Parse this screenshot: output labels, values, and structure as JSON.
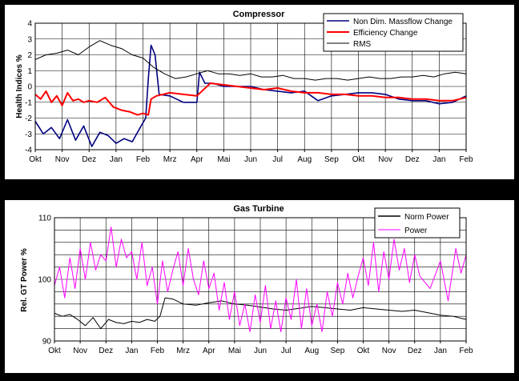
{
  "chart_data": [
    {
      "type": "line",
      "title": "Compressor",
      "ylabel": "Health Indices %",
      "xlabel": "",
      "ylim": [
        -4,
        4
      ],
      "yticks": [
        "4",
        "3",
        "2",
        "1",
        "0",
        "-1",
        "-2",
        "-3",
        "-4"
      ],
      "x_ticks": [
        "Okt",
        "Nov",
        "Dez",
        "Jan",
        "Feb",
        "Mrz",
        "Apr",
        "Mai",
        "Jun",
        "Jul",
        "Aug",
        "Sep",
        "Okt",
        "Nov",
        "Dez",
        "Jan",
        "Feb"
      ],
      "legend_position": "top-right",
      "grid": true,
      "series": [
        {
          "name": "Non Dim. Massflow Change",
          "color": "#000080",
          "x": [
            0.0,
            0.3,
            0.6,
            0.9,
            1.2,
            1.5,
            1.8,
            2.1,
            2.4,
            2.7,
            3.0,
            3.3,
            3.6,
            3.9,
            4.1,
            4.2,
            4.3,
            4.45,
            4.6,
            5.0,
            5.5,
            6.0,
            6.1,
            6.3,
            6.6,
            7.0,
            7.5,
            8.0,
            8.5,
            9.0,
            9.5,
            10.0,
            10.5,
            11.0,
            11.5,
            12.0,
            12.5,
            13.0,
            13.5,
            14.0,
            14.5,
            15.0,
            15.5,
            16.0
          ],
          "values": [
            -2.2,
            -3.0,
            -2.6,
            -3.3,
            -2.1,
            -3.4,
            -2.5,
            -3.8,
            -2.9,
            -3.1,
            -3.6,
            -3.3,
            -3.5,
            -2.6,
            -2.0,
            0.5,
            2.6,
            2.0,
            -0.5,
            -0.6,
            -1.0,
            -1.0,
            0.9,
            0.2,
            0.2,
            0.0,
            0.0,
            0.0,
            -0.2,
            -0.3,
            -0.4,
            -0.3,
            -0.9,
            -0.6,
            -0.5,
            -0.4,
            -0.4,
            -0.5,
            -0.8,
            -0.9,
            -0.9,
            -1.1,
            -1.0,
            -0.6
          ]
        },
        {
          "name": "Efficiency Change",
          "color": "#FF0000",
          "x": [
            0.0,
            0.2,
            0.4,
            0.6,
            0.8,
            1.0,
            1.2,
            1.4,
            1.6,
            1.8,
            2.0,
            2.3,
            2.6,
            2.9,
            3.2,
            3.5,
            3.8,
            4.0,
            4.2,
            4.3,
            4.5,
            5.0,
            5.5,
            6.0,
            6.5,
            7.0,
            7.5,
            8.0,
            8.5,
            9.0,
            9.5,
            10.0,
            10.5,
            11.0,
            11.5,
            12.0,
            12.5,
            13.0,
            13.5,
            14.0,
            14.5,
            15.0,
            15.5,
            16.0
          ],
          "values": [
            -0.5,
            -0.8,
            -0.3,
            -1.0,
            -0.6,
            -1.2,
            -0.4,
            -0.9,
            -0.8,
            -1.0,
            -0.9,
            -1.0,
            -0.7,
            -1.3,
            -1.5,
            -1.6,
            -1.8,
            -1.7,
            -1.8,
            -0.8,
            -0.6,
            -0.4,
            -0.5,
            -0.6,
            0.2,
            0.1,
            0.0,
            -0.1,
            -0.2,
            -0.1,
            -0.3,
            -0.4,
            -0.4,
            -0.5,
            -0.5,
            -0.6,
            -0.6,
            -0.7,
            -0.7,
            -0.8,
            -0.8,
            -0.9,
            -0.9,
            -0.7
          ]
        },
        {
          "name": "RMS",
          "color": "#000000",
          "x": [
            0.0,
            0.4,
            0.8,
            1.2,
            1.6,
            2.0,
            2.4,
            2.8,
            3.2,
            3.6,
            4.0,
            4.4,
            4.8,
            5.2,
            5.6,
            6.0,
            6.4,
            6.8,
            7.2,
            7.6,
            8.0,
            8.4,
            8.8,
            9.2,
            9.6,
            10.0,
            10.4,
            10.8,
            11.2,
            11.6,
            12.0,
            12.4,
            12.8,
            13.2,
            13.6,
            14.0,
            14.4,
            14.8,
            15.2,
            15.6,
            16.0
          ],
          "values": [
            1.7,
            2.0,
            2.1,
            2.3,
            2.0,
            2.5,
            2.9,
            2.6,
            2.4,
            2.0,
            1.8,
            1.2,
            0.8,
            0.5,
            0.6,
            0.8,
            1.0,
            0.8,
            0.8,
            0.7,
            0.8,
            0.6,
            0.6,
            0.7,
            0.5,
            0.5,
            0.4,
            0.5,
            0.5,
            0.4,
            0.5,
            0.6,
            0.5,
            0.5,
            0.6,
            0.6,
            0.7,
            0.6,
            0.8,
            0.9,
            0.8
          ]
        }
      ]
    },
    {
      "type": "line",
      "title": "Gas Turbine",
      "ylabel": "Rel. GT Power %",
      "xlabel": "",
      "ylim": [
        90,
        110
      ],
      "yticks": [
        "110",
        "100",
        "90"
      ],
      "x_ticks": [
        "Okt",
        "Nov",
        "Dez",
        "Jan",
        "Feb",
        "Mrz",
        "Apr",
        "Mai",
        "Jun",
        "Jul",
        "Aug",
        "Sep",
        "Okt",
        "Nov",
        "Dez",
        "Jan",
        "Feb"
      ],
      "legend_position": "top-right",
      "grid": true,
      "series": [
        {
          "name": "Norm Power",
          "color": "#000000",
          "x": [
            0.0,
            0.3,
            0.6,
            0.9,
            1.2,
            1.5,
            1.8,
            2.1,
            2.4,
            2.7,
            3.0,
            3.3,
            3.6,
            3.9,
            4.1,
            4.3,
            4.6,
            5.0,
            5.5,
            6.0,
            6.5,
            7.0,
            7.5,
            8.0,
            8.5,
            9.0,
            9.5,
            10.0,
            10.5,
            11.0,
            11.5,
            12.0,
            12.5,
            13.0,
            13.5,
            14.0,
            14.5,
            15.0,
            15.5,
            16.0
          ],
          "values": [
            94.5,
            94.0,
            94.3,
            93.5,
            92.5,
            93.8,
            92.0,
            93.5,
            93.0,
            92.8,
            93.2,
            93.0,
            93.5,
            93.2,
            94.0,
            97.0,
            96.8,
            96.0,
            95.8,
            96.2,
            96.5,
            96.0,
            95.8,
            95.5,
            95.2,
            95.0,
            95.3,
            95.6,
            95.4,
            95.2,
            95.0,
            95.4,
            95.2,
            95.0,
            94.8,
            95.0,
            94.6,
            94.2,
            94.0,
            93.5
          ]
        },
        {
          "name": "Power",
          "color": "#FF00FF",
          "x": [
            0.0,
            0.2,
            0.4,
            0.6,
            0.8,
            1.0,
            1.2,
            1.4,
            1.6,
            1.8,
            2.0,
            2.2,
            2.4,
            2.6,
            2.8,
            3.0,
            3.2,
            3.4,
            3.6,
            3.8,
            4.0,
            4.2,
            4.4,
            4.6,
            4.8,
            5.0,
            5.2,
            5.4,
            5.6,
            5.8,
            6.0,
            6.2,
            6.4,
            6.6,
            6.8,
            7.0,
            7.2,
            7.4,
            7.6,
            7.8,
            8.0,
            8.2,
            8.4,
            8.6,
            8.8,
            9.0,
            9.2,
            9.4,
            9.6,
            9.8,
            10.0,
            10.2,
            10.4,
            10.6,
            10.8,
            11.0,
            11.2,
            11.4,
            11.6,
            11.8,
            12.0,
            12.2,
            12.4,
            12.6,
            12.8,
            13.0,
            13.2,
            13.4,
            13.6,
            13.8,
            14.0,
            14.2,
            14.6,
            15.0,
            15.3,
            15.6,
            15.8,
            16.0
          ],
          "values": [
            99.0,
            102.0,
            97.0,
            103.5,
            98.5,
            105.0,
            100.0,
            106.0,
            101.5,
            104.0,
            103.0,
            108.5,
            102.0,
            106.5,
            103.5,
            104.5,
            100.0,
            106.0,
            99.0,
            102.0,
            96.0,
            103.0,
            98.0,
            101.5,
            104.5,
            99.0,
            105.0,
            100.0,
            97.5,
            103.0,
            98.5,
            101.0,
            95.0,
            99.5,
            93.5,
            98.0,
            92.5,
            96.0,
            91.5,
            97.5,
            93.0,
            99.0,
            92.0,
            96.5,
            91.5,
            97.0,
            93.5,
            100.0,
            92.0,
            98.5,
            92.5,
            96.0,
            91.5,
            98.0,
            94.0,
            99.5,
            96.0,
            101.0,
            97.0,
            100.5,
            103.5,
            99.0,
            106.0,
            98.0,
            104.5,
            100.0,
            106.5,
            101.5,
            105.0,
            99.5,
            104.0,
            100.5,
            98.5,
            103.0,
            96.5,
            105.0,
            101.0,
            104.0
          ]
        }
      ]
    }
  ]
}
